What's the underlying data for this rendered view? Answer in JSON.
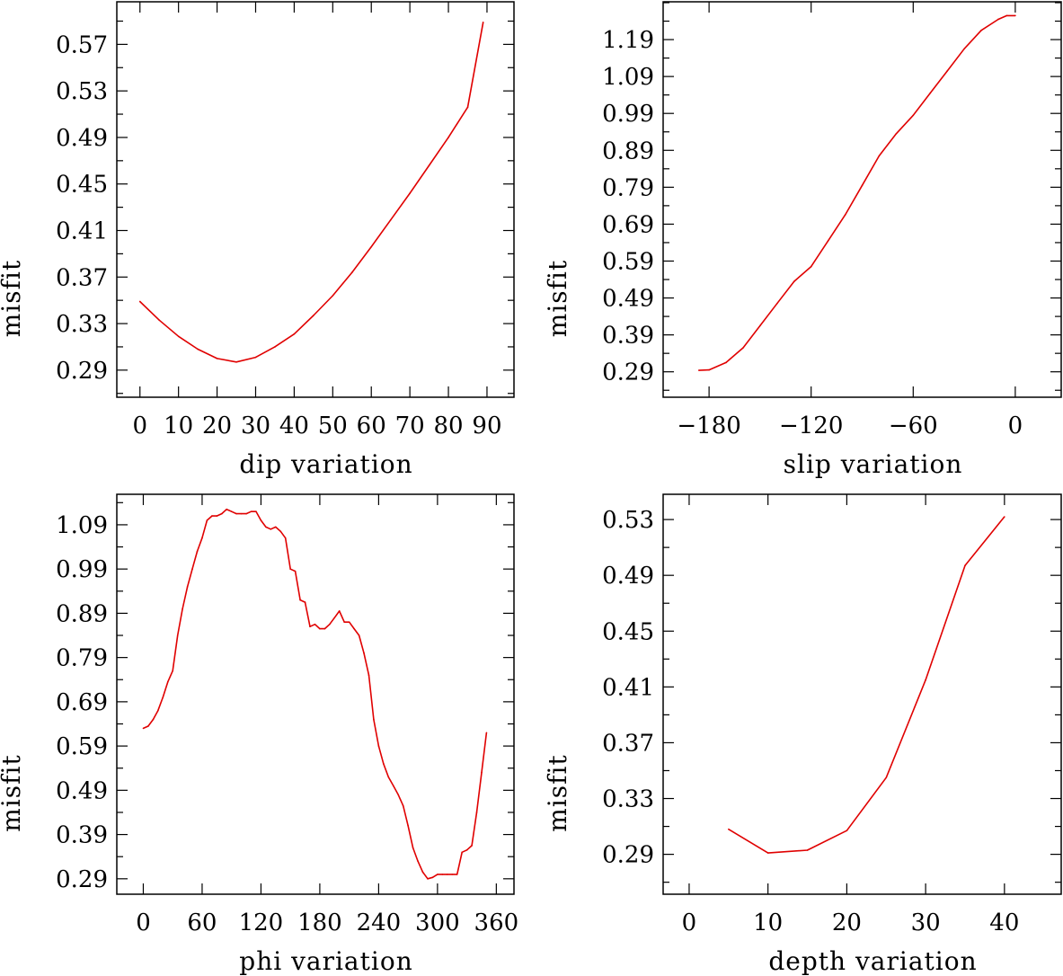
{
  "chart_data": [
    {
      "type": "line",
      "xlabel": "dip     variation",
      "ylabel": "misfit",
      "xlim": [
        -6,
        97
      ],
      "ylim": [
        0.2667,
        0.6066
      ],
      "x_major_ticks": [
        0,
        10,
        20,
        30,
        40,
        50,
        60,
        70,
        80,
        90
      ],
      "x_tick_labels": [
        "0",
        "10",
        "20",
        "30",
        "40",
        "50",
        "60",
        "70",
        "80",
        "90"
      ],
      "y_major_ticks": [
        0.29,
        0.33,
        0.37,
        0.41,
        0.45,
        0.49,
        0.53,
        0.57
      ],
      "y_tick_labels": [
        "0.29",
        "0.33",
        "0.37",
        "0.41",
        "0.45",
        "0.49",
        "0.53",
        "0.57"
      ],
      "y_minor_step": 0.02,
      "series": [
        {
          "color": "#e00000",
          "x": [
            0,
            5,
            10,
            15,
            20,
            25,
            30,
            35,
            40,
            45,
            50,
            55,
            60,
            65,
            70,
            75,
            80,
            85,
            89
          ],
          "y": [
            0.349,
            0.333,
            0.319,
            0.308,
            0.3,
            0.297,
            0.301,
            0.31,
            0.321,
            0.337,
            0.354,
            0.374,
            0.396,
            0.419,
            0.442,
            0.466,
            0.49,
            0.516,
            0.589
          ]
        }
      ]
    },
    {
      "type": "line",
      "xlabel": "slip   variation",
      "ylabel": "misfit",
      "xlim": [
        -207,
        27
      ],
      "ylim": [
        0.2211,
        1.2924
      ],
      "x_major_ticks": [
        -180,
        -120,
        -60,
        0
      ],
      "x_tick_labels": [
        "−180",
        "−120",
        "−60",
        "0"
      ],
      "y_major_ticks": [
        0.29,
        0.39,
        0.49,
        0.59,
        0.69,
        0.79,
        0.89,
        0.99,
        1.09,
        1.19
      ],
      "y_tick_labels": [
        "0.29",
        "0.39",
        "0.49",
        "0.59",
        "0.69",
        "0.79",
        "0.89",
        "0.99",
        "1.09",
        "1.19"
      ],
      "y_minor_step": 0.05,
      "series": [
        {
          "color": "#e00000",
          "x": [
            -186,
            -180,
            -170,
            -160,
            -150,
            -140,
            -130,
            -120,
            -110,
            -100,
            -90,
            -80,
            -70,
            -60,
            -50,
            -40,
            -30,
            -20,
            -10,
            -5,
            0
          ],
          "y": [
            0.294,
            0.295,
            0.315,
            0.355,
            0.415,
            0.475,
            0.535,
            0.575,
            0.645,
            0.715,
            0.795,
            0.875,
            0.935,
            0.985,
            1.045,
            1.105,
            1.165,
            1.215,
            1.245,
            1.255,
            1.255
          ]
        }
      ]
    },
    {
      "type": "line",
      "xlabel": "phi    variation",
      "ylabel": "misfit",
      "xlim": [
        -27,
        378
      ],
      "ylim": [
        0.2551,
        1.1589
      ],
      "x_major_ticks": [
        0,
        60,
        120,
        180,
        240,
        300,
        360
      ],
      "x_tick_labels": [
        "0",
        "60",
        "120",
        "180",
        "240",
        "300",
        "360"
      ],
      "y_major_ticks": [
        0.29,
        0.39,
        0.49,
        0.59,
        0.69,
        0.79,
        0.89,
        0.99,
        1.09
      ],
      "y_tick_labels": [
        "0.29",
        "0.39",
        "0.49",
        "0.59",
        "0.69",
        "0.79",
        "0.89",
        "0.99",
        "1.09"
      ],
      "y_minor_step": 0.05,
      "series": [
        {
          "color": "#e00000",
          "x": [
            0,
            5,
            10,
            15,
            20,
            25,
            30,
            35,
            40,
            45,
            50,
            55,
            60,
            65,
            70,
            75,
            80,
            85,
            90,
            95,
            100,
            105,
            110,
            115,
            120,
            125,
            130,
            135,
            140,
            145,
            150,
            155,
            160,
            165,
            170,
            175,
            180,
            185,
            190,
            195,
            200,
            205,
            210,
            215,
            220,
            225,
            230,
            235,
            240,
            245,
            250,
            255,
            260,
            265,
            270,
            275,
            280,
            285,
            290,
            295,
            300,
            305,
            310,
            315,
            320,
            325,
            330,
            335,
            340,
            345,
            350
          ],
          "y": [
            0.63,
            0.635,
            0.65,
            0.67,
            0.7,
            0.735,
            0.76,
            0.84,
            0.9,
            0.95,
            0.99,
            1.03,
            1.06,
            1.1,
            1.11,
            1.11,
            1.115,
            1.125,
            1.12,
            1.115,
            1.115,
            1.115,
            1.12,
            1.12,
            1.1,
            1.085,
            1.08,
            1.085,
            1.075,
            1.06,
            0.99,
            0.985,
            0.92,
            0.915,
            0.86,
            0.865,
            0.855,
            0.855,
            0.865,
            0.88,
            0.895,
            0.87,
            0.87,
            0.855,
            0.84,
            0.8,
            0.75,
            0.65,
            0.59,
            0.55,
            0.52,
            0.5,
            0.48,
            0.455,
            0.41,
            0.36,
            0.33,
            0.305,
            0.29,
            0.293,
            0.3,
            0.3,
            0.3,
            0.3,
            0.3,
            0.35,
            0.355,
            0.365,
            0.44,
            0.53,
            0.62
          ]
        }
      ]
    },
    {
      "type": "line",
      "xlabel": "depth  variation",
      "ylabel": "misfit",
      "xlim": [
        -3.3,
        47.2
      ],
      "ylim": [
        0.2614,
        0.5481
      ],
      "x_major_ticks": [
        0,
        10,
        20,
        30,
        40
      ],
      "x_tick_labels": [
        "0",
        "10",
        "20",
        "30",
        "40"
      ],
      "y_major_ticks": [
        0.29,
        0.33,
        0.37,
        0.41,
        0.45,
        0.49,
        0.53
      ],
      "y_tick_labels": [
        "0.29",
        "0.33",
        "0.37",
        "0.41",
        "0.45",
        "0.49",
        "0.53"
      ],
      "y_minor_step": 0.02,
      "series": [
        {
          "color": "#e00000",
          "x": [
            5,
            10,
            15,
            20,
            25,
            30,
            35,
            40
          ],
          "y": [
            0.308,
            0.291,
            0.293,
            0.307,
            0.345,
            0.415,
            0.497,
            0.532
          ]
        }
      ]
    }
  ]
}
